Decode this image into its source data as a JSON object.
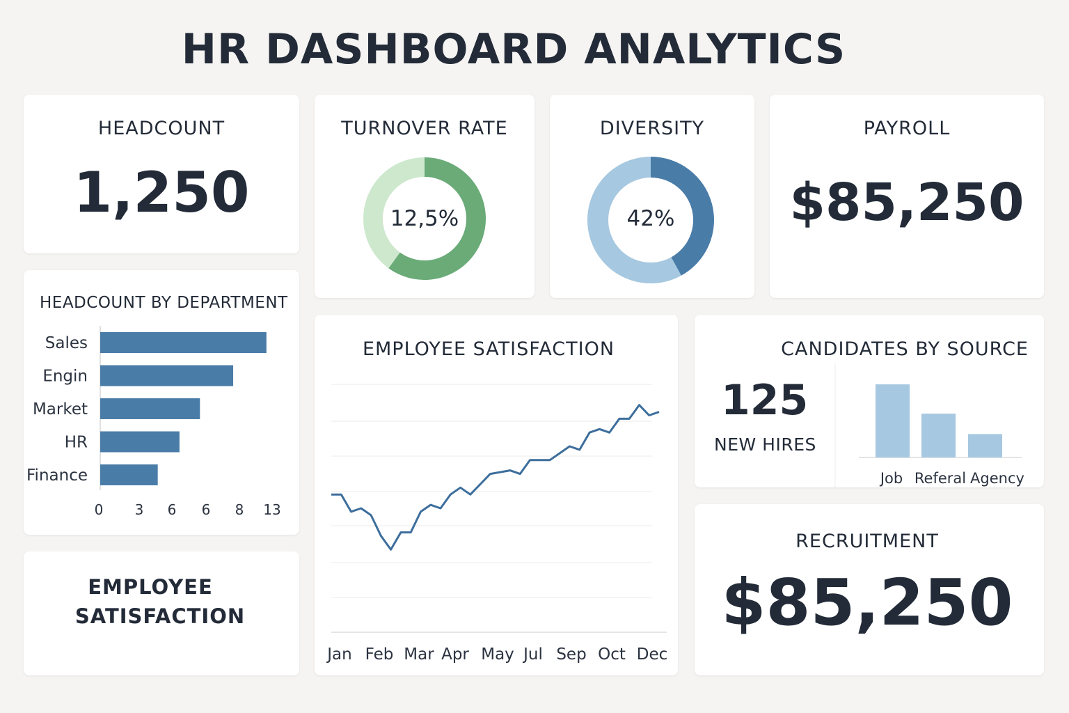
{
  "page": {
    "title": "HR DASHBOARD ANALYTICS"
  },
  "headcount": {
    "title": "HEADCOUNT",
    "value": "1,250"
  },
  "turnover": {
    "title": "TURNOVER RATE",
    "label": "12,5%",
    "percent": 12.5,
    "color_main": "#6aab78",
    "color_rest": "#cde8cd"
  },
  "diversity": {
    "title": "DIVERSITY",
    "label": "42%",
    "percent": 42,
    "color_main": "#4a7ca8",
    "color_rest": "#a6c8e0"
  },
  "payroll": {
    "title": "PAYROLL",
    "value": "$85,250"
  },
  "satisfaction_card": {
    "line1": "EMPLOYEE",
    "line2": "SATISFACTION"
  },
  "candidates": {
    "title": "CANDIDATES BY SOURCE",
    "new_hires_value": "125",
    "new_hires_label": "NEW HIRES"
  },
  "recruitment": {
    "title": "RECRUITMENT",
    "value": "$85,250"
  },
  "chart_data": [
    {
      "id": "headcount_by_department",
      "type": "bar",
      "orientation": "horizontal",
      "title": "HEADCOUNT BY DEPARTMENT",
      "categories": [
        "Sales",
        "Engin",
        "Market",
        "HR",
        "Finance"
      ],
      "values": [
        13,
        10.4,
        7.8,
        6.2,
        4.5
      ],
      "xticks": [
        "0",
        "3",
        "6",
        "6",
        "8",
        "13"
      ],
      "xlim": [
        0,
        13.5
      ],
      "color": "#4a7ca8"
    },
    {
      "id": "employee_satisfaction",
      "type": "line",
      "title": "EMPLOYEE SATISFACTION",
      "x_labels": [
        "Jan",
        "Feb",
        "Mar",
        "Apr",
        "May",
        "Jul",
        "Sep",
        "Oct",
        "Dec"
      ],
      "values": [
        40,
        40,
        35,
        36,
        34,
        28,
        24,
        29,
        29,
        35,
        37,
        36,
        40,
        42,
        40,
        43,
        46,
        46.5,
        47,
        46,
        50,
        50,
        50,
        52,
        54,
        53,
        58,
        59,
        58,
        62,
        62,
        66,
        63,
        64
      ],
      "ylim": [
        0,
        72
      ],
      "grid": true,
      "color": "#3d6e9c"
    },
    {
      "id": "candidates_by_source",
      "type": "bar",
      "orientation": "vertical",
      "categories": [
        "Job",
        "Referal",
        "Agency"
      ],
      "values": [
        100,
        60,
        32
      ],
      "ylim": [
        0,
        110
      ],
      "color": "#a6c8e0"
    }
  ]
}
